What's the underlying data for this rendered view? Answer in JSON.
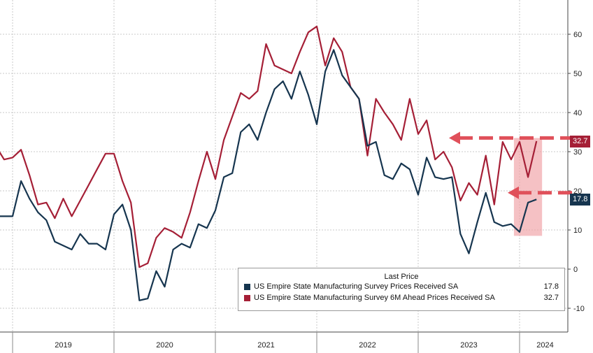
{
  "colors": {
    "navy": "#16354f",
    "crimson": "#a51f36",
    "arrow": "#e0505a",
    "highlight": "#f0a0a4",
    "grid": "#c9c9c9"
  },
  "legend": {
    "title": "Last Price",
    "items": [
      {
        "name": "US Empire State Manufacturing Survey Prices Received SA",
        "value": "17.8",
        "color": "#16354f"
      },
      {
        "name": "US Empire State Manufacturing Survey 6M Ahead Prices Received SA",
        "value": "32.7",
        "color": "#a51f36"
      }
    ]
  },
  "last_tags": {
    "red": "32.7",
    "navy": "17.8"
  },
  "chart_data": {
    "type": "line",
    "x_start": "2018-10",
    "x_end": "2024-03",
    "x_tick_labels": [
      "2019",
      "2020",
      "2021",
      "2022",
      "2023",
      "2024"
    ],
    "y_ticks": [
      -10,
      0,
      10,
      20,
      30,
      40,
      50,
      60
    ],
    "ylim": [
      -15,
      68
    ],
    "grid": true,
    "legend_position": "bottom-right",
    "series": [
      {
        "name": "US Empire State Manufacturing Survey Prices Received SA",
        "color": "#16354f",
        "values": [
          14,
          13.5,
          13.5,
          13.5,
          22.5,
          18,
          14.5,
          12.5,
          7,
          6,
          5,
          9,
          6.5,
          6.5,
          5,
          14,
          16.5,
          10,
          -8,
          -7.5,
          -0.5,
          -4.5,
          5,
          6.5,
          5.5,
          11.5,
          10.5,
          15,
          23.5,
          24.5,
          35,
          37,
          33,
          40,
          46,
          48,
          43.5,
          50.5,
          44.5,
          37,
          50.5,
          56,
          49.5,
          46.5,
          43.5,
          31.5,
          32.5,
          24,
          23,
          27,
          25.5,
          19,
          28.5,
          23.5,
          23,
          23.5,
          9,
          4,
          12,
          19.5,
          12,
          11,
          11.5,
          9.5,
          17,
          17.8
        ]
      },
      {
        "name": "US Empire State Manufacturing Survey 6M Ahead Prices Received SA",
        "color": "#a51f36",
        "values": [
          27.5,
          31.5,
          28,
          28.5,
          30.5,
          24,
          16.5,
          17,
          13,
          18,
          13.5,
          17.5,
          21.5,
          25.5,
          29.5,
          29.5,
          22.5,
          17,
          0.5,
          1.5,
          8,
          10.5,
          9.5,
          8,
          14.5,
          22.5,
          30,
          23,
          33,
          39,
          45,
          43.5,
          45.5,
          57.5,
          52,
          51,
          50,
          55.5,
          60.5,
          62,
          52,
          59,
          55.5,
          46.5,
          43.5,
          29,
          43.5,
          40,
          37,
          33,
          43.5,
          34.5,
          38,
          28,
          30,
          26,
          17.5,
          22,
          19,
          29,
          16.5,
          32.5,
          28,
          32.5,
          23.5,
          32.7
        ]
      }
    ]
  }
}
